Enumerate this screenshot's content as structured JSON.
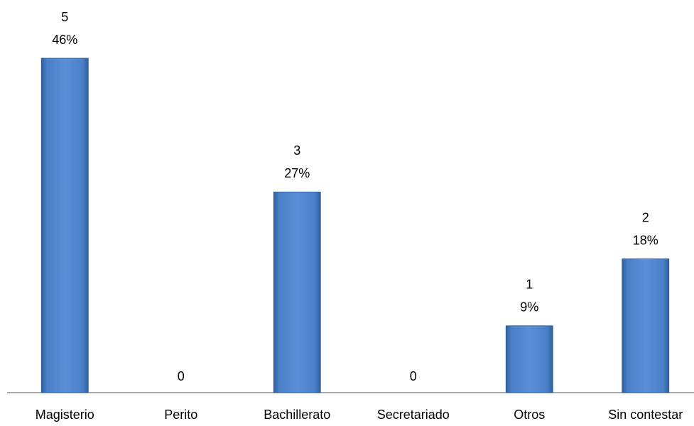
{
  "chart_data": {
    "type": "bar",
    "categories": [
      "Magisterio",
      "Perito",
      "Bachillerato",
      "Secretariado",
      "Otros",
      "Sin contestar"
    ],
    "values": [
      5,
      0,
      3,
      0,
      1,
      2
    ],
    "percent_labels": [
      "46%",
      null,
      "27%",
      null,
      "9%",
      "18%"
    ],
    "color": "#4a7ebb",
    "ylim": [
      0,
      5
    ]
  }
}
